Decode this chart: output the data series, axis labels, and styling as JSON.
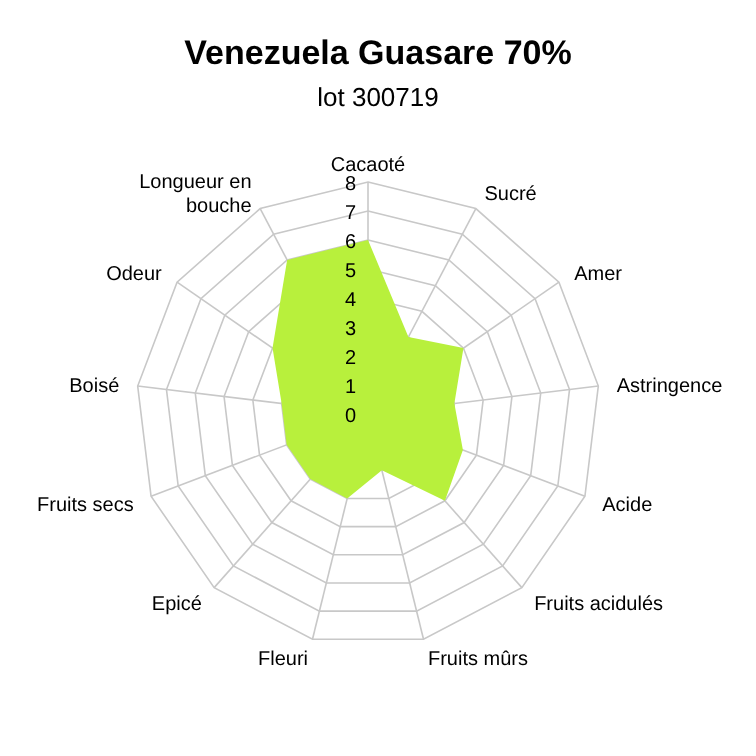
{
  "chart_data": {
    "type": "radar",
    "title": "Venezuela Guasare 70%",
    "subtitle": "lot 300719",
    "categories": [
      "Cacaoté",
      "Sucré",
      "Amer",
      "Astringence",
      "Acide",
      "Fruits acidulés",
      "Fruits mûrs",
      "Fleuri",
      "Epicé",
      "Fruits secs",
      "Boisé",
      "Odeur",
      "Longueur en bouche"
    ],
    "series": [
      {
        "color": "#b8f03c",
        "values": [
          6,
          3,
          4,
          3,
          3.5,
          4,
          2,
          3,
          3,
          3,
          3,
          4,
          6
        ]
      }
    ],
    "ylim": [
      0,
      8
    ],
    "yticks": [
      0,
      1,
      2,
      3,
      4,
      5,
      6,
      7,
      8
    ],
    "grid": true
  }
}
